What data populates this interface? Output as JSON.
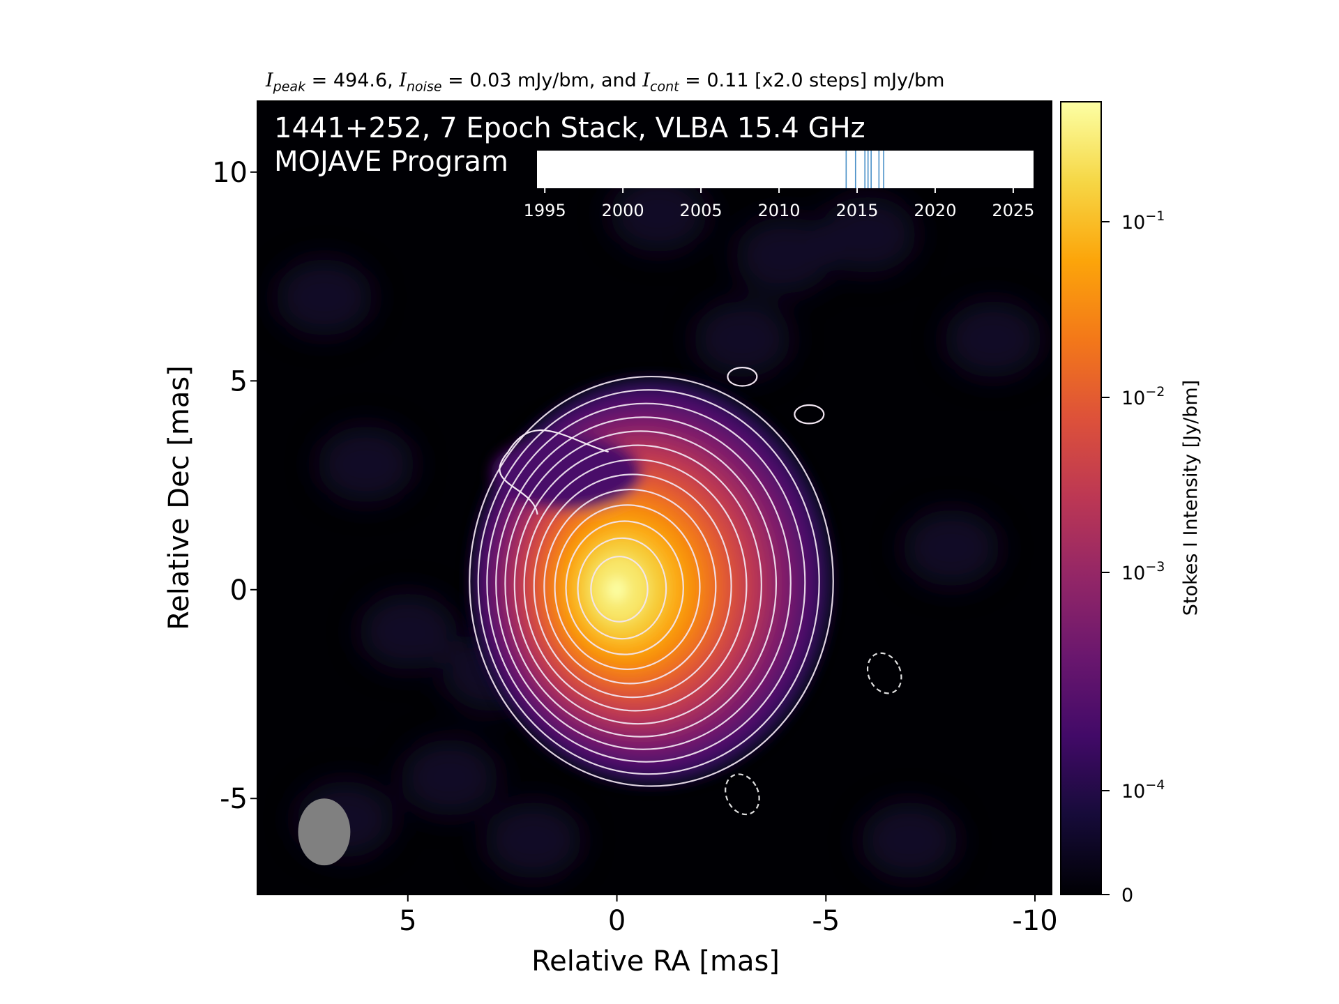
{
  "chart_data": {
    "type": "heatmap",
    "title_parts": {
      "peak_symbol": "I",
      "peak_sub": "peak",
      "peak_value": " = 494.6, ",
      "noise_symbol": "I",
      "noise_sub": "noise",
      "noise_value": " = 0.03 mJy/bm, and ",
      "cont_symbol": "I",
      "cont_sub": "cont",
      "cont_value": " = 0.11 [x2.0 steps] mJy/bm"
    },
    "annotation_lines": [
      "1441+252, 7 Epoch Stack, VLBA 15.4 GHz",
      "MOJAVE Program"
    ],
    "xlabel": "Relative RA [mas]",
    "ylabel": "Relative Dec [mas]",
    "x_ticks": [
      {
        "value": 5,
        "label": "5"
      },
      {
        "value": 0,
        "label": "0"
      },
      {
        "value": -5,
        "label": "-5"
      },
      {
        "value": -10,
        "label": "-10"
      }
    ],
    "y_ticks": [
      {
        "value": 10,
        "label": "10"
      },
      {
        "value": 5,
        "label": "5"
      },
      {
        "value": 0,
        "label": "0"
      },
      {
        "value": -5,
        "label": "-5"
      }
    ],
    "xlim": [
      8.6,
      -10.4
    ],
    "ylim": [
      -7.3,
      11.7
    ],
    "colormap": "inferno",
    "colorbar": {
      "label": "Stokes I Intensity [Jy/bm]",
      "scale": "log",
      "ticks": [
        {
          "value": 0.1,
          "base": "10",
          "exp": "−1"
        },
        {
          "value": 0.01,
          "base": "10",
          "exp": "−2"
        },
        {
          "value": 0.001,
          "base": "10",
          "exp": "−3"
        },
        {
          "value": 0.0001,
          "base": "10",
          "exp": "−4"
        },
        {
          "value": 0,
          "base": "0",
          "exp": ""
        }
      ]
    },
    "source": {
      "peak_ra": 0.0,
      "peak_dec": 0.0,
      "peak_Jy": 0.4946
    },
    "contour_count": 13,
    "beam": {
      "ra": 7.0,
      "dec": -5.8,
      "major_mas": 1.6,
      "minor_mas": 1.25,
      "color": "#808080"
    },
    "negative_contours": [
      {
        "ra": -6.4,
        "dec": -2.0
      },
      {
        "ra": -3.0,
        "dec": -4.9
      }
    ],
    "positive_islands": [
      {
        "ra": -3.0,
        "dec": 5.1
      },
      {
        "ra": -4.6,
        "dec": 4.2
      }
    ],
    "epoch_axis": {
      "ticks": [
        1995,
        2000,
        2005,
        2010,
        2015,
        2020,
        2025
      ],
      "xlim": [
        1994.5,
        2026.3
      ],
      "epochs": [
        2014.3,
        2014.9,
        2015.5,
        2015.7,
        2015.9,
        2016.4,
        2016.7
      ],
      "epoch_color": "#4a90c8"
    }
  }
}
